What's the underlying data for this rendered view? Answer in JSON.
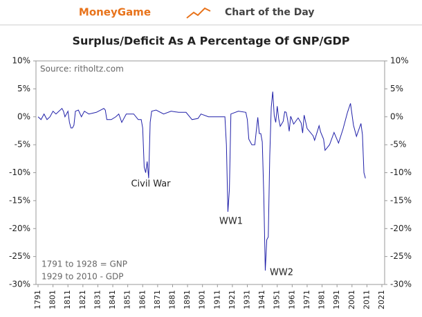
{
  "header": {
    "brand": "MoneyGame",
    "tagline": "Chart of the Day"
  },
  "chart_data": {
    "type": "line",
    "title": "Surplus/Deficit As A Percentage Of GNP/GDP",
    "source": "Source: ritholtz.com",
    "notes": [
      "1791 to 1928 = GNP",
      "1929 to 2010 - GDP"
    ],
    "annotations": [
      "Civil War",
      "WW1",
      "WW2"
    ],
    "x": [
      1791,
      1793,
      1795,
      1797,
      1799,
      1801,
      1803,
      1805,
      1807,
      1808,
      1809,
      1811,
      1812,
      1813,
      1814,
      1815,
      1816,
      1818,
      1820,
      1822,
      1825,
      1830,
      1835,
      1836,
      1837,
      1840,
      1843,
      1845,
      1847,
      1850,
      1855,
      1858,
      1860,
      1861,
      1862,
      1863,
      1864,
      1865,
      1866,
      1867,
      1870,
      1875,
      1880,
      1885,
      1890,
      1894,
      1898,
      1900,
      1905,
      1910,
      1916,
      1917,
      1918,
      1919,
      1920,
      1925,
      1930,
      1931,
      1932,
      1934,
      1936,
      1937,
      1938,
      1939,
      1940,
      1941,
      1942,
      1943,
      1944,
      1945,
      1946,
      1947,
      1948,
      1949,
      1950,
      1951,
      1952,
      1953,
      1955,
      1956,
      1957,
      1958,
      1959,
      1960,
      1962,
      1965,
      1967,
      1968,
      1969,
      1971,
      1975,
      1976,
      1979,
      1980,
      1982,
      1983,
      1986,
      1989,
      1992,
      1995,
      1998,
      2000,
      2002,
      2004,
      2007,
      2008,
      2009,
      2010
    ],
    "series": [
      {
        "name": "Surplus/Deficit",
        "color": "#1f1fa8",
        "values": [
          0,
          -0.5,
          0.5,
          -0.5,
          0,
          1,
          0.5,
          1,
          1.5,
          1,
          0,
          1,
          -1,
          -2,
          -2,
          -1.5,
          1,
          1.2,
          0,
          1,
          0.5,
          0.8,
          1.5,
          1.2,
          -0.5,
          -0.5,
          0,
          0.5,
          -1,
          0.5,
          0.5,
          -0.5,
          -0.5,
          -2,
          -9,
          -10,
          -8,
          -11,
          -1,
          1,
          1.2,
          0.5,
          1,
          0.8,
          0.8,
          -0.5,
          -0.3,
          0.5,
          0,
          0,
          0,
          -5,
          -17,
          -13,
          0.5,
          1,
          0.8,
          -0.5,
          -4,
          -5,
          -5,
          -2.5,
          -0.1,
          -3,
          -3,
          -4.5,
          -14,
          -27.5,
          -22,
          -21.5,
          -7,
          1.7,
          4.5,
          0.2,
          -1,
          1.9,
          -0.4,
          -1.7,
          -0.8,
          0.9,
          0.8,
          -0.6,
          -2.6,
          0.1,
          -1.3,
          -0.2,
          -1.1,
          -2.9,
          0.3,
          -2.1,
          -3.4,
          -4.2,
          -1.6,
          -2.7,
          -4,
          -6,
          -5,
          -2.8,
          -4.7,
          -2.2,
          0.8,
          2.4,
          -1.5,
          -3.5,
          -1.2,
          -3.2,
          -10,
          -11
        ]
      }
    ],
    "xlim": [
      1791,
      2021
    ],
    "xticks": [
      1791,
      1801,
      1811,
      1821,
      1831,
      1841,
      1851,
      1861,
      1871,
      1881,
      1891,
      1901,
      1911,
      1921,
      1931,
      1941,
      1951,
      1961,
      1971,
      1981,
      1991,
      2001,
      2011,
      2021
    ],
    "ylim": [
      -30,
      10
    ],
    "yticks": [
      {
        "value": 10,
        "label": "10%"
      },
      {
        "value": 5,
        "label": "5%"
      },
      {
        "value": 0,
        "label": "0%"
      },
      {
        "value": -5,
        "label": "-5%"
      },
      {
        "value": -10,
        "label": "-10%"
      },
      {
        "value": -15,
        "label": "-15%"
      },
      {
        "value": -20,
        "label": "-20%"
      },
      {
        "value": -25,
        "label": "-25%"
      },
      {
        "value": -30,
        "label": "-30%"
      }
    ],
    "y2lim": [
      -30,
      10
    ],
    "y2ticks": [
      {
        "value": 10,
        "label": "10%"
      },
      {
        "value": 5,
        "label": "5%"
      },
      {
        "value": 0,
        "label": "0%"
      },
      {
        "value": -5,
        "label": "-5%"
      },
      {
        "value": -10,
        "label": "-10%"
      },
      {
        "value": -15,
        "label": "-15%"
      },
      {
        "value": -20,
        "label": "-20%"
      },
      {
        "value": -25,
        "label": "-25%"
      },
      {
        "value": -30,
        "label": "-30%"
      }
    ]
  }
}
